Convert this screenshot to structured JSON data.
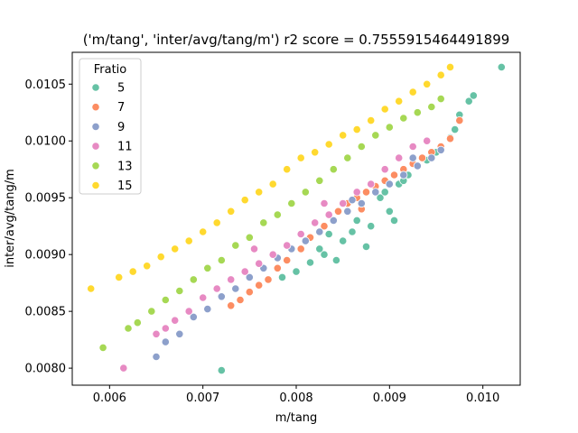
{
  "chart_data": {
    "type": "scatter",
    "title": "('m/tang', 'inter/avg/tang/m') r2 score = 0.7555915464491899",
    "xlabel": "m/tang",
    "ylabel": "inter/avg/tang/m",
    "xlim": [
      0.0056,
      0.0104
    ],
    "ylim": [
      0.00785,
      0.01078
    ],
    "xticks": [
      "0.006",
      "0.007",
      "0.008",
      "0.009",
      "0.010"
    ],
    "xtick_values": [
      0.006,
      0.007,
      0.008,
      0.009,
      0.01
    ],
    "yticks": [
      "0.0080",
      "0.0085",
      "0.0090",
      "0.0095",
      "0.0100",
      "0.0105"
    ],
    "ytick_values": [
      0.008,
      0.0085,
      0.009,
      0.0095,
      0.01,
      0.0105
    ],
    "grid": false,
    "legend": {
      "title": "Fratio",
      "placement": "top-left"
    },
    "series": [
      {
        "name": "5",
        "color": "#66c2a5",
        "points": [
          [
            0.0072,
            0.00798
          ],
          [
            0.00785,
            0.0088
          ],
          [
            0.008,
            0.00885
          ],
          [
            0.00815,
            0.00893
          ],
          [
            0.0083,
            0.009
          ],
          [
            0.00843,
            0.00895
          ],
          [
            0.0085,
            0.00912
          ],
          [
            0.0086,
            0.0092
          ],
          [
            0.00875,
            0.00907
          ],
          [
            0.0088,
            0.00925
          ],
          [
            0.0089,
            0.0095
          ],
          [
            0.009,
            0.00938
          ],
          [
            0.00905,
            0.0093
          ],
          [
            0.0091,
            0.00962
          ],
          [
            0.0092,
            0.0097
          ],
          [
            0.0093,
            0.00978
          ],
          [
            0.0094,
            0.00983
          ],
          [
            0.0095,
            0.0099
          ],
          [
            0.00955,
            0.00995
          ],
          [
            0.00965,
            0.01003
          ],
          [
            0.0097,
            0.0101
          ],
          [
            0.00975,
            0.01023
          ],
          [
            0.00985,
            0.01035
          ],
          [
            0.0099,
            0.0104
          ],
          [
            0.0102,
            0.01065
          ],
          [
            0.00825,
            0.00905
          ],
          [
            0.00835,
            0.00918
          ],
          [
            0.00865,
            0.0093
          ],
          [
            0.00895,
            0.00955
          ],
          [
            0.00915,
            0.00965
          ]
        ]
      },
      {
        "name": "7",
        "color": "#fc8d62",
        "points": [
          [
            0.0073,
            0.00855
          ],
          [
            0.0074,
            0.0086
          ],
          [
            0.0075,
            0.00867
          ],
          [
            0.0076,
            0.00873
          ],
          [
            0.0077,
            0.00878
          ],
          [
            0.0078,
            0.00888
          ],
          [
            0.0079,
            0.00895
          ],
          [
            0.00805,
            0.00905
          ],
          [
            0.00815,
            0.00915
          ],
          [
            0.0083,
            0.00925
          ],
          [
            0.00845,
            0.00938
          ],
          [
            0.00855,
            0.00945
          ],
          [
            0.00865,
            0.0095
          ],
          [
            0.00875,
            0.00955
          ],
          [
            0.00885,
            0.0096
          ],
          [
            0.00895,
            0.00965
          ],
          [
            0.00905,
            0.0097
          ],
          [
            0.00915,
            0.00975
          ],
          [
            0.00925,
            0.0098
          ],
          [
            0.00935,
            0.00985
          ],
          [
            0.00945,
            0.0099
          ],
          [
            0.00955,
            0.00995
          ],
          [
            0.00965,
            0.01002
          ],
          [
            0.00975,
            0.01018
          ],
          [
            0.0087,
            0.0094
          ]
        ]
      },
      {
        "name": "9",
        "color": "#8da0cb",
        "points": [
          [
            0.0065,
            0.0081
          ],
          [
            0.0066,
            0.00823
          ],
          [
            0.00675,
            0.0083
          ],
          [
            0.0069,
            0.00845
          ],
          [
            0.00705,
            0.00852
          ],
          [
            0.0072,
            0.00863
          ],
          [
            0.00735,
            0.0087
          ],
          [
            0.0075,
            0.0088
          ],
          [
            0.00765,
            0.00888
          ],
          [
            0.0078,
            0.00897
          ],
          [
            0.00795,
            0.00905
          ],
          [
            0.0081,
            0.00912
          ],
          [
            0.00825,
            0.0092
          ],
          [
            0.0084,
            0.0093
          ],
          [
            0.00855,
            0.00938
          ],
          [
            0.0087,
            0.00945
          ],
          [
            0.00885,
            0.00955
          ],
          [
            0.009,
            0.00962
          ],
          [
            0.00915,
            0.0097
          ],
          [
            0.0093,
            0.00978
          ],
          [
            0.00945,
            0.00985
          ],
          [
            0.00955,
            0.00992
          ],
          [
            0.00925,
            0.00985
          ],
          [
            0.0086,
            0.00948
          ]
        ]
      },
      {
        "name": "11",
        "color": "#e78ac3",
        "points": [
          [
            0.00615,
            0.008
          ],
          [
            0.0065,
            0.0083
          ],
          [
            0.0066,
            0.00835
          ],
          [
            0.0067,
            0.00842
          ],
          [
            0.00685,
            0.0085
          ],
          [
            0.007,
            0.00862
          ],
          [
            0.00715,
            0.0087
          ],
          [
            0.0073,
            0.00878
          ],
          [
            0.00745,
            0.00885
          ],
          [
            0.0076,
            0.00892
          ],
          [
            0.00775,
            0.009
          ],
          [
            0.0079,
            0.00908
          ],
          [
            0.00805,
            0.00918
          ],
          [
            0.0082,
            0.00928
          ],
          [
            0.00835,
            0.00935
          ],
          [
            0.0085,
            0.00945
          ],
          [
            0.00865,
            0.00955
          ],
          [
            0.0088,
            0.00962
          ],
          [
            0.00895,
            0.00975
          ],
          [
            0.0091,
            0.00985
          ],
          [
            0.00925,
            0.00995
          ],
          [
            0.0094,
            0.01
          ],
          [
            0.00755,
            0.00905
          ],
          [
            0.0083,
            0.00945
          ]
        ]
      },
      {
        "name": "13",
        "color": "#a6d854",
        "points": [
          [
            0.00593,
            0.00818
          ],
          [
            0.0062,
            0.00835
          ],
          [
            0.0063,
            0.0084
          ],
          [
            0.00645,
            0.0085
          ],
          [
            0.0066,
            0.0086
          ],
          [
            0.00675,
            0.00868
          ],
          [
            0.0069,
            0.00878
          ],
          [
            0.00705,
            0.00888
          ],
          [
            0.0072,
            0.00895
          ],
          [
            0.00735,
            0.00908
          ],
          [
            0.0075,
            0.00915
          ],
          [
            0.00765,
            0.00928
          ],
          [
            0.0078,
            0.00935
          ],
          [
            0.00795,
            0.00945
          ],
          [
            0.0081,
            0.00955
          ],
          [
            0.00825,
            0.00965
          ],
          [
            0.0084,
            0.00975
          ],
          [
            0.00855,
            0.00985
          ],
          [
            0.0087,
            0.00995
          ],
          [
            0.00885,
            0.01005
          ],
          [
            0.009,
            0.01012
          ],
          [
            0.00915,
            0.0102
          ],
          [
            0.0093,
            0.01025
          ],
          [
            0.00945,
            0.0103
          ],
          [
            0.00955,
            0.01037
          ]
        ]
      },
      {
        "name": "15",
        "color": "#ffd92f",
        "points": [
          [
            0.0058,
            0.0087
          ],
          [
            0.0061,
            0.0088
          ],
          [
            0.00625,
            0.00885
          ],
          [
            0.0064,
            0.0089
          ],
          [
            0.00655,
            0.00898
          ],
          [
            0.0067,
            0.00905
          ],
          [
            0.00685,
            0.00912
          ],
          [
            0.007,
            0.0092
          ],
          [
            0.00715,
            0.00928
          ],
          [
            0.0073,
            0.00938
          ],
          [
            0.00745,
            0.00948
          ],
          [
            0.0076,
            0.00955
          ],
          [
            0.00775,
            0.00962
          ],
          [
            0.0079,
            0.00975
          ],
          [
            0.00805,
            0.00985
          ],
          [
            0.0082,
            0.0099
          ],
          [
            0.00835,
            0.00997
          ],
          [
            0.0085,
            0.01005
          ],
          [
            0.00865,
            0.0101
          ],
          [
            0.0088,
            0.01018
          ],
          [
            0.00895,
            0.01028
          ],
          [
            0.0091,
            0.01035
          ],
          [
            0.00925,
            0.01043
          ],
          [
            0.0094,
            0.0105
          ],
          [
            0.00955,
            0.01058
          ],
          [
            0.00965,
            0.01065
          ]
        ]
      }
    ]
  }
}
